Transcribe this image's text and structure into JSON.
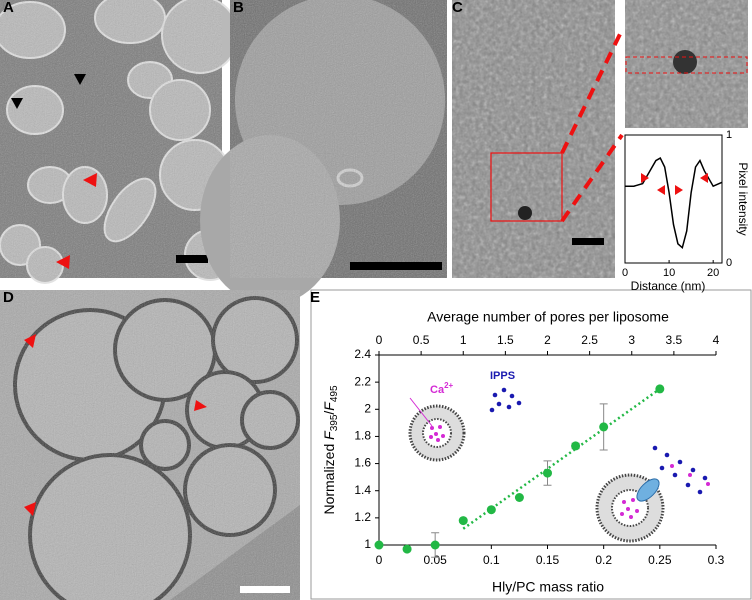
{
  "panels": {
    "a": "A",
    "b": "B",
    "c": "C",
    "d": "D",
    "e": "E"
  },
  "chart_data": [
    {
      "type": "scatter",
      "x": [
        0,
        0.025,
        0.05,
        0.075,
        0.1,
        0.125,
        0.15,
        0.175,
        0.2,
        0.25
      ],
      "series": [
        {
          "color": "#22b845",
          "values": [
            1,
            0.97,
            1,
            1.18,
            1.26,
            1.35,
            1.53,
            1.73,
            1.87,
            2.15
          ],
          "errors": [
            null,
            null,
            0.09,
            null,
            null,
            null,
            0.09,
            0.02,
            0.17,
            null
          ]
        }
      ],
      "trendline": {
        "x": [
          0.075,
          0.25
        ],
        "values": [
          1.12,
          2.15
        ],
        "color": "#22b845"
      },
      "xlim": [
        0,
        0.3
      ],
      "xticks": [
        0,
        0.05,
        0.1,
        0.15,
        0.2,
        0.25,
        0.3
      ],
      "x2lim": [
        0,
        4
      ],
      "x2ticks": [
        0,
        0.5,
        1,
        1.5,
        2,
        2.5,
        3,
        3.5,
        4
      ],
      "ylim": [
        1,
        2.4
      ],
      "yticks": [
        1,
        1.2,
        1.4,
        1.6,
        1.8,
        2,
        2.2,
        2.4
      ],
      "xlabel": "Hly/PC mass ratio",
      "x2label": "Average number of pores per liposome",
      "ylabel": [
        "Normalized ",
        "F",
        "395",
        "/",
        "F",
        "495"
      ],
      "annotations": {
        "ion": [
          "Ca",
          "2+"
        ],
        "probe": "IPPS"
      }
    },
    {
      "type": "line",
      "x": [
        0,
        2,
        4,
        6,
        7,
        8,
        9,
        10,
        11,
        12,
        13,
        14,
        15,
        16,
        17,
        18,
        20,
        22
      ],
      "values": [
        0.6,
        0.6,
        0.62,
        0.74,
        0.8,
        0.82,
        0.75,
        0.55,
        0.3,
        0.15,
        0.12,
        0.25,
        0.55,
        0.75,
        0.8,
        0.72,
        0.6,
        0.63
      ],
      "color": "#000000",
      "xlim": [
        0,
        22
      ],
      "xticks": [
        0,
        10,
        20
      ],
      "ylim": [
        0,
        1
      ],
      "yticks": [
        0,
        1
      ],
      "xlabel": "Distance (nm)",
      "ylabel": "Pixel intensity"
    }
  ]
}
